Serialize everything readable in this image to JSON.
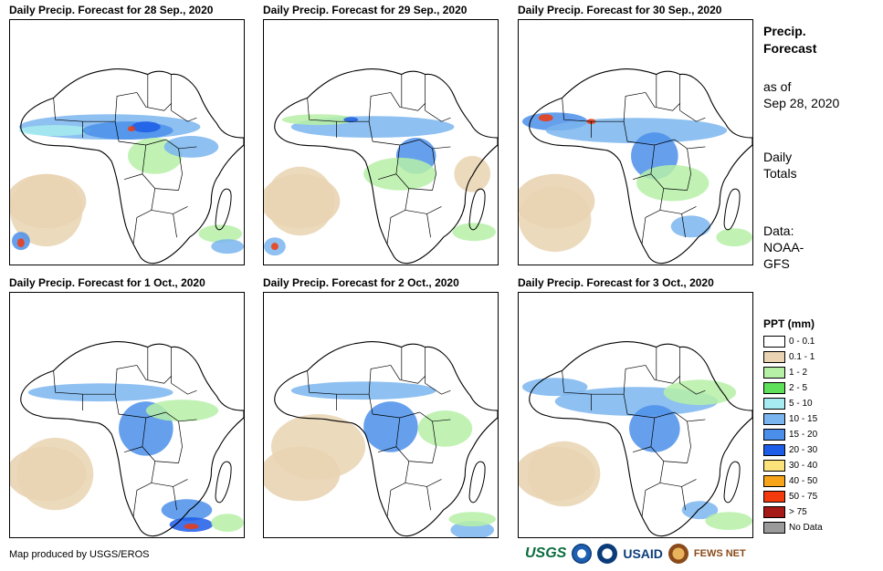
{
  "panels": [
    {
      "title": "Daily Precip. Forecast for 28 Sep., 2020"
    },
    {
      "title": "Daily Precip. Forecast for 29 Sep., 2020"
    },
    {
      "title": "Daily Precip. Forecast for 30 Sep., 2020"
    },
    {
      "title": "Daily Precip. Forecast for 1 Oct., 2020"
    },
    {
      "title": "Daily Precip. Forecast for 2 Oct., 2020"
    },
    {
      "title": "Daily Precip. Forecast for 3 Oct., 2020"
    }
  ],
  "side": {
    "heading_line1": "Precip.",
    "heading_line2": "Forecast",
    "asof_line1": "as of",
    "asof_line2": "Sep 28, 2020",
    "totals_line1": "Daily",
    "totals_line2": "Totals",
    "data_line1": "Data:",
    "data_line2": "NOAA-",
    "data_line3": "GFS"
  },
  "legend": {
    "title": "PPT (mm)",
    "items": [
      {
        "label": "0 - 0.1",
        "color": "#ffffff"
      },
      {
        "label": "0.1 - 1",
        "color": "#e9d3b2"
      },
      {
        "label": "1 - 2",
        "color": "#b6f0a7"
      },
      {
        "label": "2 - 5",
        "color": "#5ee05a"
      },
      {
        "label": "5 - 10",
        "color": "#a7ecf0"
      },
      {
        "label": "10 - 15",
        "color": "#7ab5ef"
      },
      {
        "label": "15 - 20",
        "color": "#4b8fea"
      },
      {
        "label": "20 - 30",
        "color": "#1d5ce8"
      },
      {
        "label": "30 - 40",
        "color": "#fbe27a"
      },
      {
        "label": "40 - 50",
        "color": "#f7a418"
      },
      {
        "label": "50 - 75",
        "color": "#f23a0c"
      },
      {
        "label": "> 75",
        "color": "#a51a16"
      },
      {
        "label": "No Data",
        "color": "#9a9a9a"
      }
    ]
  },
  "credit": "Map produced by USGS/EROS",
  "logos": {
    "usgs": "USGS",
    "usaid": "USAID",
    "fews": "FEWS NET"
  }
}
